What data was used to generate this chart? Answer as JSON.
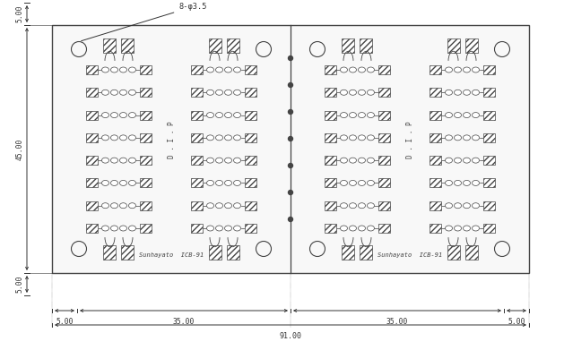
{
  "bg_color": "#ffffff",
  "line_color": "#444444",
  "fig_width": 6.29,
  "fig_height": 3.91,
  "dpi": 100,
  "dim_top_label": "8-φ3.5",
  "dim_left_top": "5.00",
  "dim_left_main": "45.00",
  "dim_left_bot": "5.00",
  "dim_bot_lm": "5.00",
  "dim_bot_ls": "35.00",
  "dim_bot_rs": "35.00",
  "dim_bot_rm": "5.00",
  "dim_bot_total": "91.00",
  "logo_text": "Sunhayato  ICB-91",
  "dip_text": "D.I.P",
  "BX0": 58,
  "BY0_img": 28,
  "BX1": 590,
  "BY1_img": 305
}
